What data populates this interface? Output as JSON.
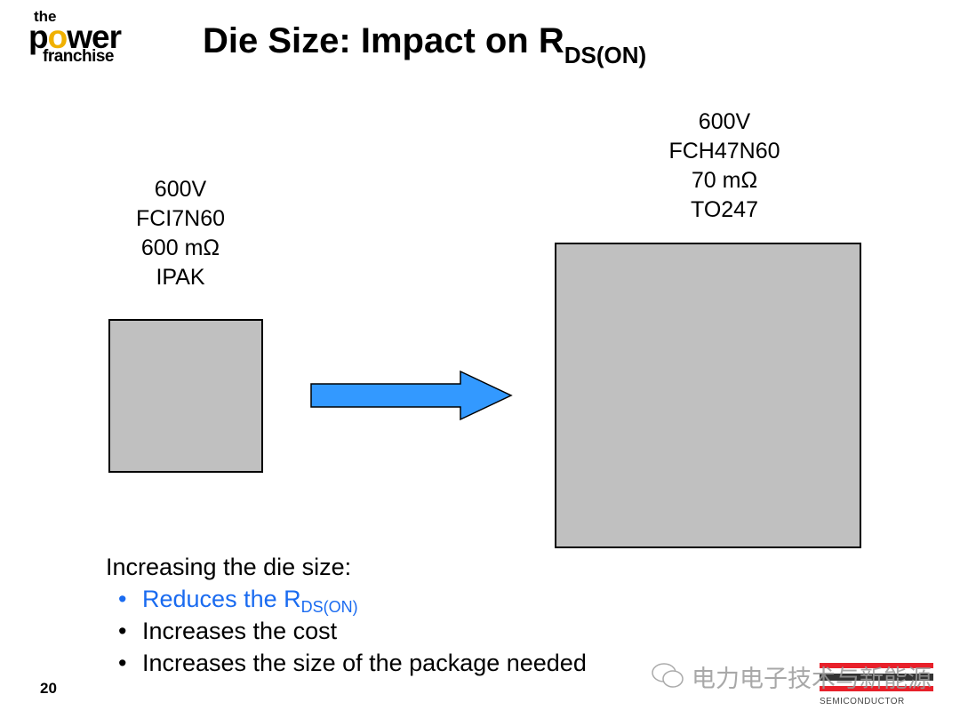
{
  "logo": {
    "line1": "the",
    "line2_a": "p",
    "line2_o": "o",
    "line2_b": "wer",
    "line3": "franchise"
  },
  "title": {
    "main": "Die Size: Impact on R",
    "sub": "DS(ON)"
  },
  "left_device": {
    "voltage": "600V",
    "part": "FCI7N60",
    "rdson": "600 mΩ",
    "package": "IPAK"
  },
  "right_device": {
    "voltage": "600V",
    "part": "FCH47N60",
    "rdson": "70 mΩ",
    "package": "TO247"
  },
  "colors": {
    "die": "#c0c0c0",
    "arrow": "#3399ff",
    "highlight": "#1a6bf0"
  },
  "body": {
    "intro": "Increasing the die size:",
    "bullets": [
      {
        "text": "Reduces the R",
        "sub": "DS(ON)"
      },
      {
        "text": "Increases the cost"
      },
      {
        "text": "Increases the size of the package needed"
      }
    ]
  },
  "page_number": "20",
  "watermark": "电力电子技术与新能源",
  "company_logo": {
    "tagline": "SEMICONDUCTOR"
  }
}
